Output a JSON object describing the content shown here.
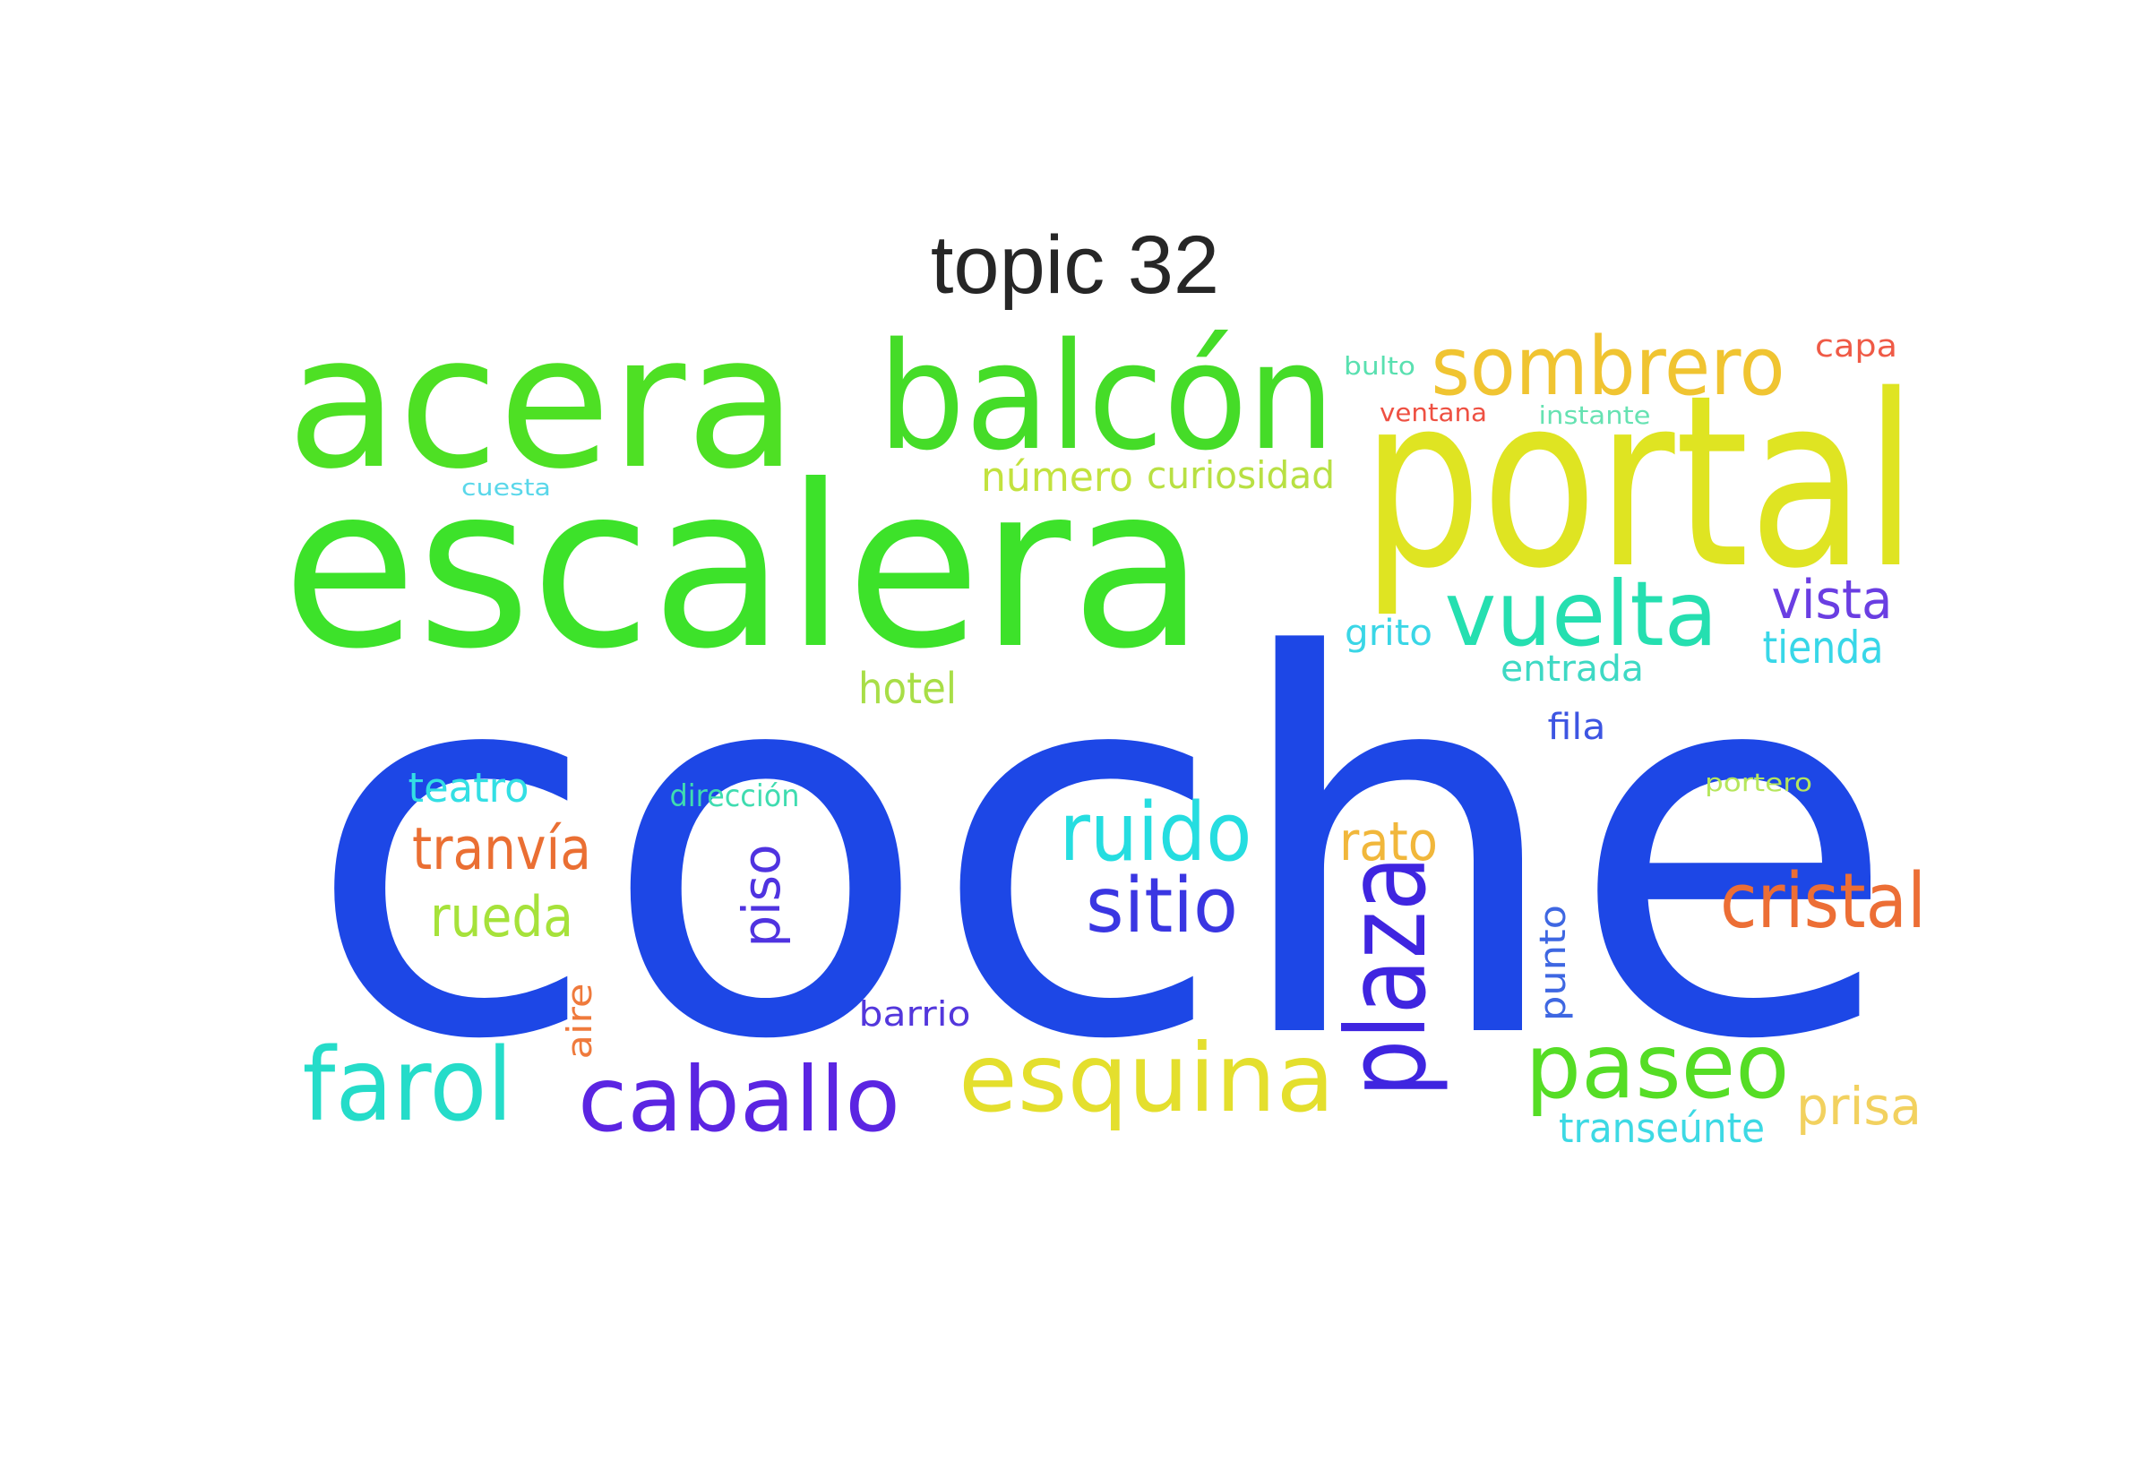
{
  "title": "topic 32",
  "words": [
    {
      "text": "coche",
      "color": "#1d47e6"
    },
    {
      "text": "escalera",
      "color": "#3de22a"
    },
    {
      "text": "acera",
      "color": "#4ee024"
    },
    {
      "text": "balcón",
      "color": "#45dc28"
    },
    {
      "text": "portal",
      "color": "#dfe422"
    },
    {
      "text": "sombrero",
      "color": "#f0c431"
    },
    {
      "text": "vuelta",
      "color": "#25dfb0"
    },
    {
      "text": "plaza",
      "color": "#3f25e0"
    },
    {
      "text": "esquina",
      "color": "#e4df2d"
    },
    {
      "text": "caballo",
      "color": "#5b25e2"
    },
    {
      "text": "farol",
      "color": "#25dcc9"
    },
    {
      "text": "paseo",
      "color": "#55dd25"
    },
    {
      "text": "ruido",
      "color": "#25dde0"
    },
    {
      "text": "sitio",
      "color": "#3a36e2"
    },
    {
      "text": "cristal",
      "color": "#ec6e35"
    },
    {
      "text": "tranvía",
      "color": "#ea6f33"
    },
    {
      "text": "rueda",
      "color": "#a6e23a"
    },
    {
      "text": "piso",
      "color": "#4f33e0"
    },
    {
      "text": "prisa",
      "color": "#f2d15f"
    },
    {
      "text": "rato",
      "color": "#f1b73b"
    },
    {
      "text": "vista",
      "color": "#6a3ee2"
    },
    {
      "text": "tienda",
      "color": "#38d7e8"
    },
    {
      "text": "número",
      "color": "#c2e23e"
    },
    {
      "text": "curiosidad",
      "color": "#b8e043"
    },
    {
      "text": "hotel",
      "color": "#a8de47"
    },
    {
      "text": "teatro",
      "color": "#33dfe4"
    },
    {
      "text": "grito",
      "color": "#3ad6e6"
    },
    {
      "text": "entrada",
      "color": "#3ed9c4"
    },
    {
      "text": "transeúnte",
      "color": "#3dd9e4"
    },
    {
      "text": "punto",
      "color": "#3e67e2"
    },
    {
      "text": "barrio",
      "color": "#5337dc"
    },
    {
      "text": "fila",
      "color": "#3d55e2"
    },
    {
      "text": "aire",
      "color": "#ef7a3c"
    },
    {
      "text": "dirección",
      "color": "#3fdcb0"
    },
    {
      "text": "capa",
      "color": "#ef5a46"
    },
    {
      "text": "bulto",
      "color": "#59e0b0"
    },
    {
      "text": "ventana",
      "color": "#ee5042"
    },
    {
      "text": "instante",
      "color": "#66e2b2"
    },
    {
      "text": "portero",
      "color": "#b6e65c"
    },
    {
      "text": "cuesta",
      "color": "#5ad7ea"
    }
  ]
}
